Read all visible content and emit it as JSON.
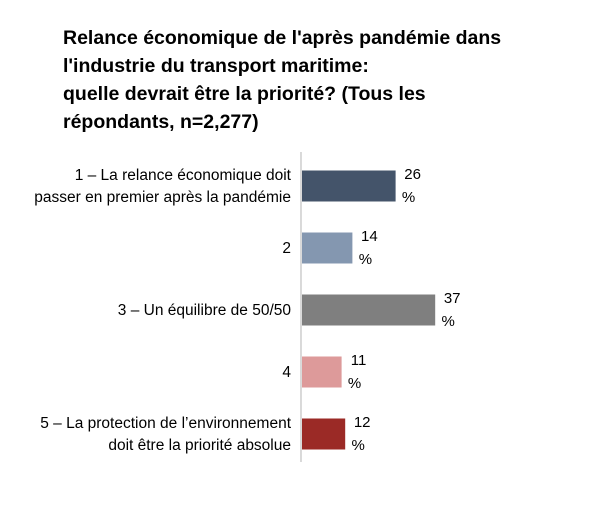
{
  "chart_data": {
    "type": "bar",
    "orientation": "horizontal",
    "title_lines": [
      "Relance économique de l'après pandémie dans",
      "l'industrie du transport maritime:",
      "quelle devrait être la priorité? (Tous les",
      "répondants, n=2,277)"
    ],
    "categories": [
      [
        "1 – La relance économique doit",
        "passer en premier après la pandémie"
      ],
      [
        "2"
      ],
      [
        "3 – Un équilibre de 50/50"
      ],
      [
        "4"
      ],
      [
        "5 – La protection de l’environnement",
        "doit être la priorité absolue"
      ]
    ],
    "values": [
      26,
      14,
      37,
      11,
      12
    ],
    "unit": "%",
    "colors": [
      "#44546a",
      "#8497b0",
      "#7f7f7f",
      "#dd9a9a",
      "#9b2a26"
    ],
    "axis_color": "#c0c0c0",
    "xlim": [
      0,
      40
    ],
    "grid": false,
    "legend": false
  }
}
